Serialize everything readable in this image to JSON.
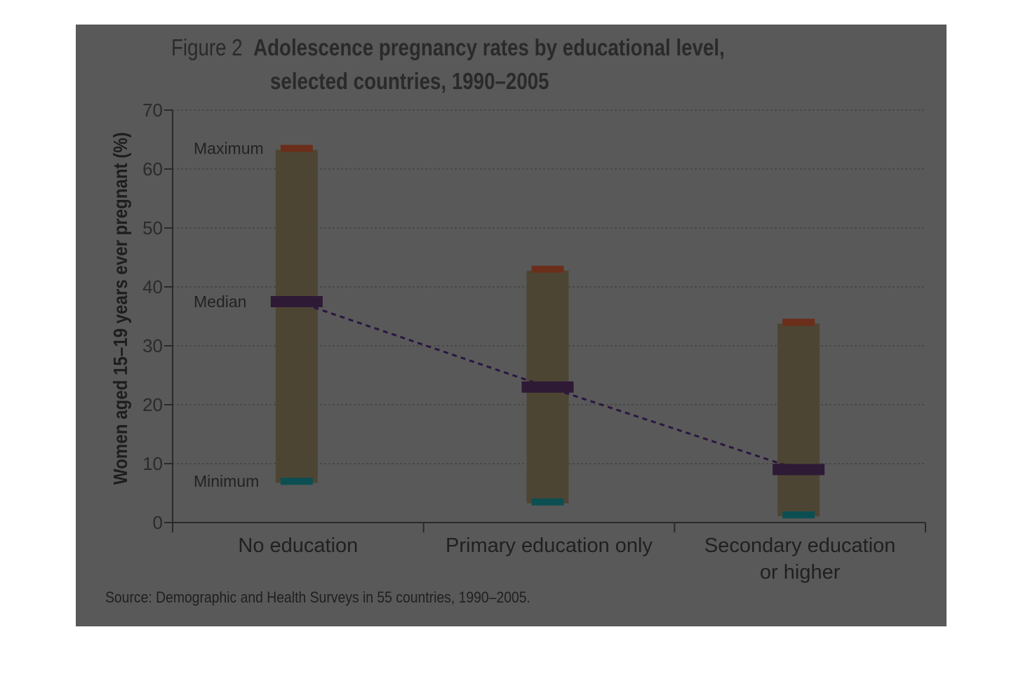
{
  "figure": {
    "prefix": "Figure 2",
    "title_line1": "Adolescence pregnancy rates by educational level,",
    "title_line2": "selected countries, 1990–2005",
    "source": "Source: Demographic and Health Surveys in 55 countries, 1990–2005."
  },
  "chart_data": {
    "type": "range-bar",
    "title": "Adolescence pregnancy rates by educational level, selected countries, 1990–2005",
    "ylabel": "Women aged 15–19 years ever pregnant (%)",
    "ylim": [
      0,
      70
    ],
    "yticks": [
      0,
      10,
      20,
      30,
      40,
      50,
      60,
      70
    ],
    "grid": true,
    "categories": [
      "No education",
      "Primary education only",
      "Secondary education or higher"
    ],
    "category_lines": [
      [
        "No education"
      ],
      [
        "Primary education only"
      ],
      [
        "Secondary education",
        "or higher"
      ]
    ],
    "minimum": [
      7,
      3.5,
      1.3
    ],
    "median": [
      37.5,
      23,
      9
    ],
    "maximum": [
      63.5,
      43,
      34
    ],
    "legend_labels": {
      "maximum": "Maximum",
      "median": "Median",
      "minimum": "Minimum"
    },
    "colors": {
      "range_bar": "#4d4533",
      "maximum": "#6b2e1a",
      "median": "#2e1a35",
      "minimum": "#0c4f52",
      "trend_line": "#2a1640",
      "background": "#595959"
    }
  }
}
